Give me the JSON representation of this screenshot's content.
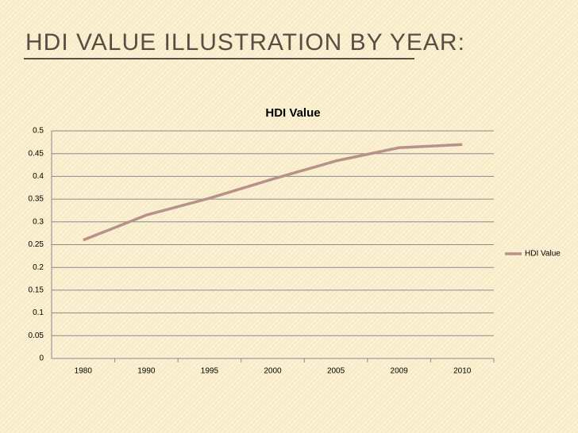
{
  "header": {
    "title": "HDI VALUE ILLUSTRATION BY YEAR:"
  },
  "chart_data": {
    "type": "line",
    "title": "HDI Value",
    "categories": [
      "1980",
      "1990",
      "1995",
      "2000",
      "2005",
      "2009",
      "2010"
    ],
    "series": [
      {
        "name": "HDI Value",
        "color": "#b8918b",
        "values": [
          0.26,
          0.315,
          0.352,
          0.394,
          0.434,
          0.463,
          0.47
        ]
      }
    ],
    "ylim": [
      0,
      0.5
    ],
    "yticks": [
      0,
      0.05,
      0.1,
      0.15,
      0.2,
      0.25,
      0.3,
      0.35,
      0.4,
      0.45,
      0.5
    ],
    "grid": true,
    "legend": "right"
  }
}
